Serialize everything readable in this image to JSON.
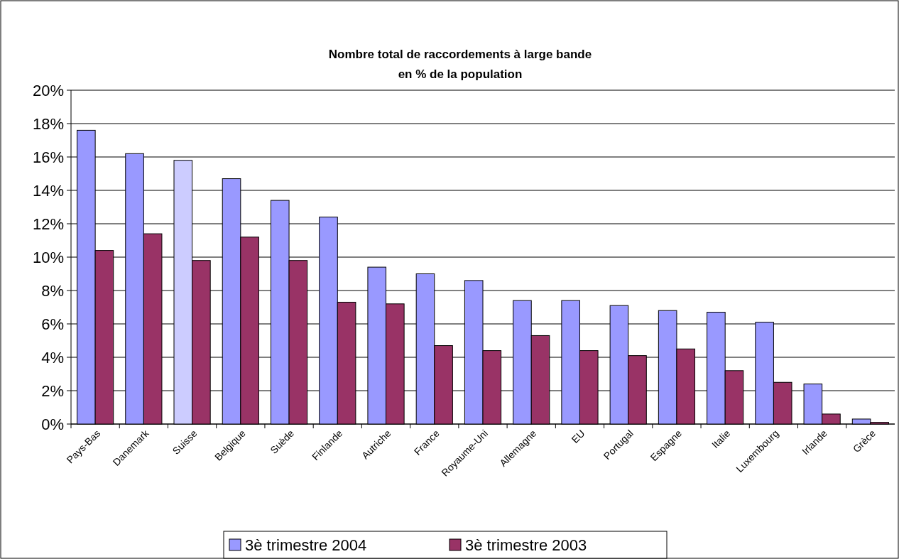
{
  "chart_data": {
    "type": "bar",
    "title": "Nombre total de raccordements à large bande\nen % de la population",
    "categories": [
      "Pays-Bas",
      "Danemark",
      "Suisse",
      "Belgique",
      "Suède",
      "Finlande",
      "Autriche",
      "France",
      "Royaume-Uni",
      "Allemagne",
      "EU",
      "Portugal",
      "Espagne",
      "Italie",
      "Luxembourg",
      "Irlande",
      "Grèce"
    ],
    "series": [
      {
        "name": "3è trimestre 2004",
        "color": "#9999ff",
        "colors": [
          "#9999ff",
          "#9999ff",
          "#ccccff",
          "#9999ff",
          "#9999ff",
          "#9999ff",
          "#9999ff",
          "#9999ff",
          "#9999ff",
          "#9999ff",
          "#9999ff",
          "#9999ff",
          "#9999ff",
          "#9999ff",
          "#9999ff",
          "#9999ff",
          "#9999ff"
        ],
        "values": [
          17.6,
          16.2,
          15.8,
          14.7,
          13.4,
          12.4,
          9.4,
          9.0,
          8.6,
          7.4,
          7.4,
          7.1,
          6.8,
          6.7,
          6.1,
          2.4,
          0.3
        ]
      },
      {
        "name": "3è trimestre 2003",
        "color": "#993366",
        "values": [
          10.4,
          11.4,
          9.8,
          11.2,
          9.8,
          7.3,
          7.2,
          4.7,
          4.4,
          5.3,
          4.4,
          4.1,
          4.5,
          3.2,
          2.5,
          0.6,
          0.1
        ]
      }
    ],
    "ylim": [
      0,
      20
    ],
    "yticks": [
      {
        "value": 0,
        "label": "0%"
      },
      {
        "value": 2,
        "label": "2%"
      },
      {
        "value": 4,
        "label": "4%"
      },
      {
        "value": 6,
        "label": "6%"
      },
      {
        "value": 8,
        "label": "8%"
      },
      {
        "value": 10,
        "label": "10%"
      },
      {
        "value": 12,
        "label": "12%"
      },
      {
        "value": 14,
        "label": "14%"
      },
      {
        "value": 16,
        "label": "16%"
      },
      {
        "value": 18,
        "label": "18%"
      },
      {
        "value": 20,
        "label": "20%"
      }
    ],
    "grid": "y",
    "legend": "bottom"
  }
}
